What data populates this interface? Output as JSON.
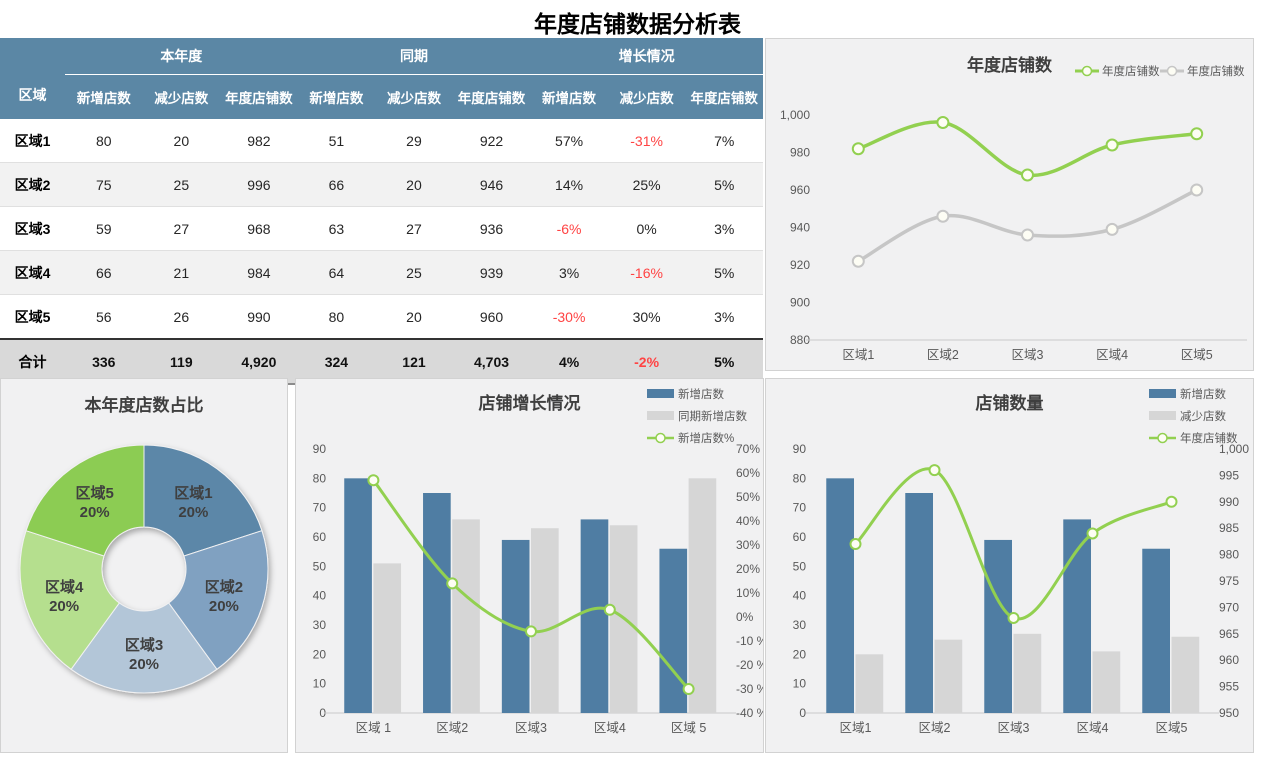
{
  "page_title": "年度店铺数据分析表",
  "colors": {
    "header-blue": "#5b87a5",
    "bar-blue": "#4f7da3",
    "bar-gray": "#d6d6d6",
    "line-green": "#92d050",
    "line-gray": "#c6c6c6",
    "negative-red": "#ff4343",
    "panel-bg": "#f1f1f2",
    "panel-border": "#d2d2d2",
    "row-alt": "#f2f2f2",
    "total-bg": "#d9d9d9"
  },
  "table": {
    "corner_header": "区域",
    "group_headers": [
      "本年度",
      "同期",
      "增长情况"
    ],
    "col_headers": [
      "新增店数",
      "减少店数",
      "年度店铺数",
      "新增店数",
      "减少店数",
      "年度店铺数",
      "新增店数",
      "减少店数",
      "年度店铺数"
    ],
    "rows": [
      {
        "label": "区域1",
        "cells": [
          "80",
          "20",
          "982",
          "51",
          "29",
          "922",
          "57%",
          "-31%",
          "7%"
        ]
      },
      {
        "label": "区域2",
        "cells": [
          "75",
          "25",
          "996",
          "66",
          "20",
          "946",
          "14%",
          "25%",
          "5%"
        ]
      },
      {
        "label": "区域3",
        "cells": [
          "59",
          "27",
          "968",
          "63",
          "27",
          "936",
          "-6%",
          "0%",
          "3%"
        ]
      },
      {
        "label": "区域4",
        "cells": [
          "66",
          "21",
          "984",
          "64",
          "25",
          "939",
          "3%",
          "-16%",
          "5%"
        ]
      },
      {
        "label": "区域5",
        "cells": [
          "56",
          "26",
          "990",
          "80",
          "20",
          "960",
          "-30%",
          "30%",
          "3%"
        ]
      },
      {
        "label": "合计",
        "cells": [
          "336",
          "119",
          "4,920",
          "324",
          "121",
          "4,703",
          "4%",
          "-2%",
          "5%"
        ]
      }
    ]
  },
  "chart_data": [
    {
      "id": "annual-line",
      "type": "line",
      "title": "年度店铺数",
      "categories": [
        "区域1",
        "区域2",
        "区域3",
        "区域4",
        "区域5"
      ],
      "series": [
        {
          "name": "年度店铺数",
          "kind": "line",
          "axis": "left",
          "color": "#92d050",
          "values": [
            982,
            996,
            968,
            984,
            990
          ]
        },
        {
          "name": "年度店铺数",
          "kind": "line",
          "axis": "left",
          "color": "#c6c6c6",
          "values": [
            922,
            946,
            936,
            939,
            960
          ]
        }
      ],
      "ylim": [
        880,
        1000
      ],
      "yticks": [
        "880",
        "900",
        "920",
        "940",
        "960",
        "980",
        "1,000"
      ],
      "grid": false,
      "legend_position": "top-right"
    },
    {
      "id": "share-donut",
      "type": "pie",
      "title": "本年度店数占比",
      "labels": [
        "区域1",
        "区域2",
        "区域3",
        "区域4",
        "区域5"
      ],
      "values": [
        20,
        20,
        20,
        20,
        20
      ],
      "value_labels": [
        "20%",
        "20%",
        "20%",
        "20%",
        "20%"
      ],
      "colors": [
        "#5b87a8",
        "#80a1c1",
        "#b3c6d8",
        "#b5df8e",
        "#8ccc52"
      ],
      "donut": true
    },
    {
      "id": "growth-combo",
      "type": "bar",
      "title": "店铺增长情况",
      "categories": [
        "区域 1",
        "区域2",
        "区域3",
        "区域4",
        "区域 5"
      ],
      "series": [
        {
          "name": "新增店数",
          "kind": "bar",
          "axis": "left",
          "color": "#4f7da3",
          "values": [
            80,
            75,
            59,
            66,
            56
          ]
        },
        {
          "name": "同期新增店数",
          "kind": "bar",
          "axis": "left",
          "color": "#d6d6d6",
          "values": [
            51,
            66,
            63,
            64,
            80
          ]
        },
        {
          "name": "新增店数%",
          "kind": "line",
          "axis": "right",
          "color": "#92d050",
          "values": [
            57,
            14,
            -6,
            3,
            -30
          ]
        }
      ],
      "ylim": [
        0,
        90
      ],
      "yticks": [
        "0",
        "10",
        "20",
        "30",
        "40",
        "50",
        "60",
        "70",
        "80",
        "90"
      ],
      "y2lim": [
        -40,
        70
      ],
      "y2ticks": [
        "-40 %",
        "-30 %",
        "-20 %",
        "-10 %",
        "0%",
        "10%",
        "20%",
        "30%",
        "40%",
        "50%",
        "60%",
        "70%"
      ],
      "neg_tick_color": "#ff4343",
      "legend_position": "top-right"
    },
    {
      "id": "count-combo",
      "type": "bar",
      "title": "店铺数量",
      "categories": [
        "区域1",
        "区域2",
        "区域3",
        "区域4",
        "区域5"
      ],
      "series": [
        {
          "name": "新增店数",
          "kind": "bar",
          "axis": "left",
          "color": "#4f7da3",
          "values": [
            80,
            75,
            59,
            66,
            56
          ]
        },
        {
          "name": "减少店数",
          "kind": "bar",
          "axis": "left",
          "color": "#d6d6d6",
          "values": [
            20,
            25,
            27,
            21,
            26
          ]
        },
        {
          "name": "年度店铺数",
          "kind": "line",
          "axis": "right",
          "color": "#92d050",
          "values": [
            982,
            996,
            968,
            984,
            990
          ]
        }
      ],
      "ylim": [
        0,
        90
      ],
      "yticks": [
        "0",
        "10",
        "20",
        "30",
        "40",
        "50",
        "60",
        "70",
        "80",
        "90"
      ],
      "y2lim": [
        950,
        1000
      ],
      "y2ticks": [
        "950",
        "955",
        "960",
        "965",
        "970",
        "975",
        "980",
        "985",
        "990",
        "995",
        "1,000"
      ],
      "legend_position": "top-right"
    }
  ]
}
